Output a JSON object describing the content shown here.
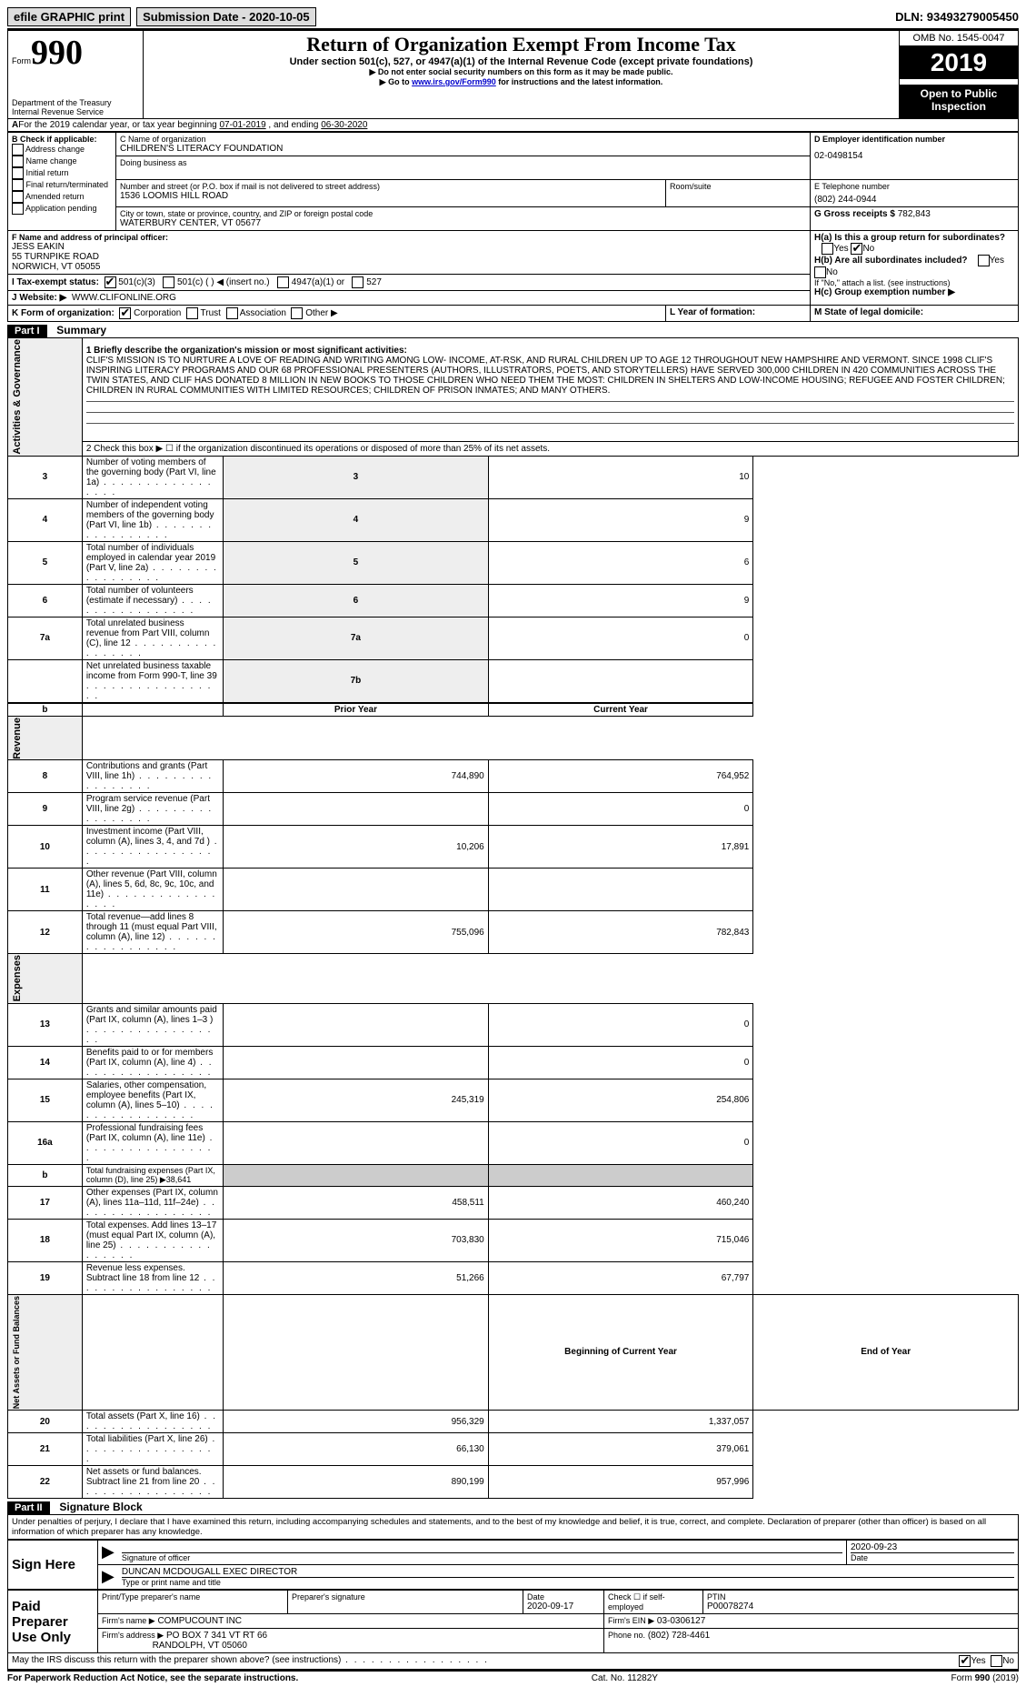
{
  "topbar": {
    "efile": "efile GRAPHIC print",
    "submission_label": "Submission Date - ",
    "submission_date": "2020-10-05",
    "dln_label": "DLN: ",
    "dln": "93493279005450"
  },
  "header": {
    "form_word": "Form",
    "form_number": "990",
    "dept": "Department of the Treasury\nInternal Revenue Service",
    "title": "Return of Organization Exempt From Income Tax",
    "subtitle": "Under section 501(c), 527, or 4947(a)(1) of the Internal Revenue Code (except private foundations)",
    "note1": "Do not enter social security numbers on this form as it may be made public.",
    "note2_pre": "Go to ",
    "note2_link": "www.irs.gov/Form990",
    "note2_post": " for instructions and the latest information.",
    "omb": "OMB No. 1545-0047",
    "year": "2019",
    "open": "Open to Public Inspection"
  },
  "period": {
    "text_a": "For the 2019 calendar year, or tax year beginning ",
    "begin": "07-01-2019",
    "text_b": " , and ending ",
    "end": "06-30-2020"
  },
  "boxB": {
    "label": "B Check if applicable:",
    "items": [
      "Address change",
      "Name change",
      "Initial return",
      "Final return/terminated",
      "Amended return",
      "Application pending"
    ]
  },
  "boxC": {
    "name_label": "C Name of organization",
    "name": "CHILDREN'S LITERACY FOUNDATION",
    "dba_label": "Doing business as",
    "street_label": "Number and street (or P.O. box if mail is not delivered to street address)",
    "street": "1536 LOOMIS HILL ROAD",
    "room_label": "Room/suite",
    "city_label": "City or town, state or province, country, and ZIP or foreign postal code",
    "city": "WATERBURY CENTER, VT  05677"
  },
  "boxD": {
    "label": "D Employer identification number",
    "val": "02-0498154"
  },
  "boxE": {
    "label": "E Telephone number",
    "val": "(802) 244-0944"
  },
  "boxG": {
    "label": "G Gross receipts $ ",
    "val": "782,843"
  },
  "boxF": {
    "label": "F Name and address of principal officer:",
    "name": "JESS EAKIN",
    "street": "55 TURNPIKE ROAD",
    "city": "NORWICH, VT  05055"
  },
  "boxH": {
    "a": "H(a)  Is this a group return for subordinates?",
    "b": "H(b)  Are all subordinates included?",
    "note": "If \"No,\" attach a list. (see instructions)",
    "c": "H(c)  Group exemption number ▶",
    "yes": "Yes",
    "no": "No"
  },
  "status": {
    "label": "I  Tax-exempt status:",
    "o1": "501(c)(3)",
    "o2": "501(c) (  ) ◀ (insert no.)",
    "o3": "4947(a)(1) or",
    "o4": "527"
  },
  "website": {
    "label": "J  Website: ▶",
    "val": "WWW.CLIFONLINE.ORG"
  },
  "boxK": {
    "label": "K Form of organization:",
    "opts": [
      "Corporation",
      "Trust",
      "Association",
      "Other ▶"
    ]
  },
  "boxL": "L Year of formation:",
  "boxM": "M State of legal domicile:",
  "part1": {
    "label": "Part I",
    "title": "Summary",
    "vert1": "Activities & Governance",
    "q1_label": "1   Briefly describe the organization's mission or most significant activities:",
    "q1": "CLIF'S MISSION IS TO NURTURE A LOVE OF READING AND WRITING AMONG LOW- INCOME, AT-RSK, AND RURAL CHILDREN UP TO AGE 12 THROUGHOUT NEW HAMPSHIRE AND VERMONT. SINCE 1998 CLIF'S INSPIRING LITERACY PROGRAMS AND OUR 68 PROFESSIONAL PRESENTERS (AUTHORS, ILLUSTRATORS, POETS, AND STORYTELLERS) HAVE SERVED 300,000 CHILDREN IN 420 COMMUNITIES ACROSS THE TWIN STATES, AND CLIF HAS DONATED 8 MILLION IN NEW BOOKS TO THOSE CHILDREN WHO NEED THEM THE MOST: CHILDREN IN SHELTERS AND LOW-INCOME HOUSING; REFUGEE AND FOSTER CHILDREN; CHILDREN IN RURAL COMMUNITIES WITH LIMITED RESOURCES; CHILDREN OF PRISON INMATES; AND MANY OTHERS.",
    "q2": "2   Check this box ▶ ☐ if the organization discontinued its operations or disposed of more than 25% of its net assets.",
    "rows_ag": [
      {
        "n": "3",
        "d": "Number of voting members of the governing body (Part VI, line 1a)",
        "box": "3",
        "v": "10"
      },
      {
        "n": "4",
        "d": "Number of independent voting members of the governing body (Part VI, line 1b)",
        "box": "4",
        "v": "9"
      },
      {
        "n": "5",
        "d": "Total number of individuals employed in calendar year 2019 (Part V, line 2a)",
        "box": "5",
        "v": "6"
      },
      {
        "n": "6",
        "d": "Total number of volunteers (estimate if necessary)",
        "box": "6",
        "v": "9"
      },
      {
        "n": "7a",
        "d": "Total unrelated business revenue from Part VIII, column (C), line 12",
        "box": "7a",
        "v": "0"
      },
      {
        "n": "",
        "d": "Net unrelated business taxable income from Form 990-T, line 39",
        "box": "7b",
        "v": ""
      }
    ],
    "hdr_b": "b",
    "vert2": "Revenue",
    "col_prior": "Prior Year",
    "col_current": "Current Year",
    "rows_rev": [
      {
        "n": "8",
        "d": "Contributions and grants (Part VIII, line 1h)",
        "p": "744,890",
        "c": "764,952"
      },
      {
        "n": "9",
        "d": "Program service revenue (Part VIII, line 2g)",
        "p": "",
        "c": "0"
      },
      {
        "n": "10",
        "d": "Investment income (Part VIII, column (A), lines 3, 4, and 7d )",
        "p": "10,206",
        "c": "17,891"
      },
      {
        "n": "11",
        "d": "Other revenue (Part VIII, column (A), lines 5, 6d, 8c, 9c, 10c, and 11e)",
        "p": "",
        "c": ""
      },
      {
        "n": "12",
        "d": "Total revenue—add lines 8 through 11 (must equal Part VIII, column (A), line 12)",
        "p": "755,096",
        "c": "782,843"
      }
    ],
    "vert3": "Expenses",
    "rows_exp": [
      {
        "n": "13",
        "d": "Grants and similar amounts paid (Part IX, column (A), lines 1–3 )",
        "p": "",
        "c": "0"
      },
      {
        "n": "14",
        "d": "Benefits paid to or for members (Part IX, column (A), line 4)",
        "p": "",
        "c": "0"
      },
      {
        "n": "15",
        "d": "Salaries, other compensation, employee benefits (Part IX, column (A), lines 5–10)",
        "p": "245,319",
        "c": "254,806"
      },
      {
        "n": "16a",
        "d": "Professional fundraising fees (Part IX, column (A), line 11e)",
        "p": "",
        "c": "0"
      },
      {
        "n": "b",
        "d": "Total fundraising expenses (Part IX, column (D), line 25) ▶38,641",
        "grey": true
      },
      {
        "n": "17",
        "d": "Other expenses (Part IX, column (A), lines 11a–11d, 11f–24e)",
        "p": "458,511",
        "c": "460,240"
      },
      {
        "n": "18",
        "d": "Total expenses. Add lines 13–17 (must equal Part IX, column (A), line 25)",
        "p": "703,830",
        "c": "715,046"
      },
      {
        "n": "19",
        "d": "Revenue less expenses. Subtract line 18 from line 12",
        "p": "51,266",
        "c": "67,797"
      }
    ],
    "vert4": "Net Assets or Fund Balances",
    "col_begin": "Beginning of Current Year",
    "col_end": "End of Year",
    "rows_na": [
      {
        "n": "20",
        "d": "Total assets (Part X, line 16)",
        "p": "956,329",
        "c": "1,337,057"
      },
      {
        "n": "21",
        "d": "Total liabilities (Part X, line 26)",
        "p": "66,130",
        "c": "379,061"
      },
      {
        "n": "22",
        "d": "Net assets or fund balances. Subtract line 21 from line 20",
        "p": "890,199",
        "c": "957,996"
      }
    ]
  },
  "part2": {
    "label": "Part II",
    "title": "Signature Block",
    "perjury": "Under penalties of perjury, I declare that I have examined this return, including accompanying schedules and statements, and to the best of my knowledge and belief, it is true, correct, and complete. Declaration of preparer (other than officer) is based on all information of which preparer has any knowledge.",
    "sign_here": "Sign Here",
    "sig_officer": "Signature of officer",
    "sig_date": "2020-09-23",
    "date_label": "Date",
    "name_title": "DUNCAN MCDOUGALL  EXEC DIRECTOR",
    "name_title_label": "Type or print name and title",
    "paid": "Paid Preparer Use Only",
    "pp_name_label": "Print/Type preparer's name",
    "pp_sig_label": "Preparer's signature",
    "pp_date_label": "Date",
    "pp_date": "2020-09-17",
    "pp_check": "Check ☐ if self-employed",
    "ptin_label": "PTIN",
    "ptin": "P00078274",
    "firm_name_label": "Firm's name    ▶",
    "firm_name": "COMPUCOUNT INC",
    "firm_ein_label": "Firm's EIN ▶",
    "firm_ein": "03-0306127",
    "firm_addr_label": "Firm's address ▶",
    "firm_addr1": "PO BOX 7 341 VT RT 66",
    "firm_addr2": "RANDOLPH, VT  05060",
    "phone_label": "Phone no.",
    "phone": "(802) 728-4461",
    "discuss": "May the IRS discuss this return with the preparer shown above? (see instructions)",
    "yes": "Yes",
    "no": "No"
  },
  "footer": {
    "left": "For Paperwork Reduction Act Notice, see the separate instructions.",
    "mid": "Cat. No. 11282Y",
    "right": "Form 990 (2019)"
  }
}
